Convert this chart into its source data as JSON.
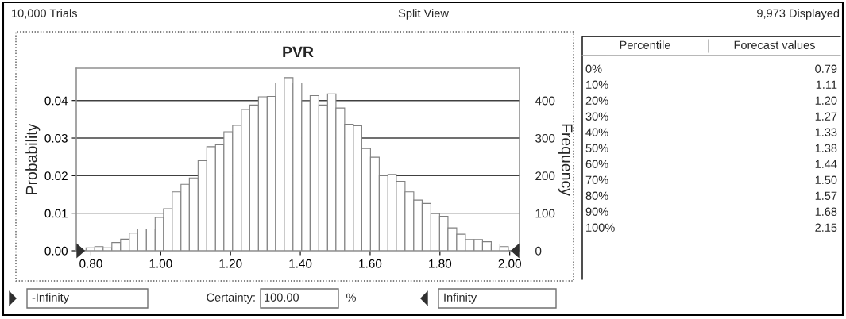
{
  "chart_data": {
    "type": "histogram",
    "title": "PVR",
    "ylabel": "Probability",
    "y2label": "Frequency",
    "bins": [
      0.786,
      0.811,
      0.835,
      0.86,
      0.885,
      0.91,
      0.934,
      0.959,
      0.984,
      1.008,
      1.033,
      1.058,
      1.082,
      1.107,
      1.132,
      1.157,
      1.181,
      1.206,
      1.231,
      1.255,
      1.28,
      1.305,
      1.329,
      1.354,
      1.379,
      1.404,
      1.428,
      1.453,
      1.478,
      1.502,
      1.527,
      1.552,
      1.576,
      1.601,
      1.626,
      1.651,
      1.675,
      1.7,
      1.725,
      1.749,
      1.774,
      1.799,
      1.823,
      1.848,
      1.873,
      1.898,
      1.922,
      1.947,
      1.972,
      1.996
    ],
    "values": [
      0.0008,
      0.0011,
      0.0008,
      0.0022,
      0.0031,
      0.0047,
      0.0058,
      0.0058,
      0.0089,
      0.0112,
      0.0157,
      0.0177,
      0.0194,
      0.024,
      0.0277,
      0.0282,
      0.0317,
      0.0334,
      0.0376,
      0.0388,
      0.041,
      0.0411,
      0.0447,
      0.0461,
      0.0447,
      0.0399,
      0.0413,
      0.0388,
      0.0418,
      0.038,
      0.0337,
      0.0333,
      0.0272,
      0.0249,
      0.02,
      0.0203,
      0.0185,
      0.0157,
      0.0135,
      0.0126,
      0.0099,
      0.0092,
      0.0061,
      0.0044,
      0.003,
      0.003,
      0.0024,
      0.0018,
      0.0011
    ],
    "color": "#ffffff",
    "xlim": [
      0.758,
      2.028
    ],
    "xticks": [
      {
        "value": 0.8,
        "label": "0.80"
      },
      {
        "value": 1.0,
        "label": "1.00"
      },
      {
        "value": 1.2,
        "label": "1.20"
      },
      {
        "value": 1.4,
        "label": "1.40"
      },
      {
        "value": 1.6,
        "label": "1.60"
      },
      {
        "value": 1.8,
        "label": "1.80"
      },
      {
        "value": 2.0,
        "label": "2.00"
      }
    ],
    "ylim": [
      0,
      0.0486
    ],
    "yticks": [
      {
        "value": 0,
        "label": "0.00"
      },
      {
        "value": 0.01,
        "label": "0.01"
      },
      {
        "value": 0.02,
        "label": "0.02"
      },
      {
        "value": 0.03,
        "label": "0.03"
      },
      {
        "value": 0.04,
        "label": "0.04"
      }
    ],
    "y2lim": [
      0,
      486
    ],
    "y2ticks": [
      0,
      100,
      200,
      300,
      400
    ],
    "grid": "y",
    "annotations": [
      "10,000 Trials",
      "Split View",
      "9,973 Displayed",
      "-Infinity",
      "Certainty:",
      "100.00",
      "%",
      "Infinity",
      "Percentile",
      "Forecast values",
      "0%",
      "0.79",
      "10%",
      "1.11",
      "20%",
      "1.20",
      "30%",
      "1.27",
      "40%",
      "1.33",
      "50%",
      "1.38",
      "60%",
      "1.44",
      "70%",
      "1.50",
      "80%",
      "1.57",
      "90%",
      "1.68",
      "100%",
      "2.15"
    ]
  }
}
